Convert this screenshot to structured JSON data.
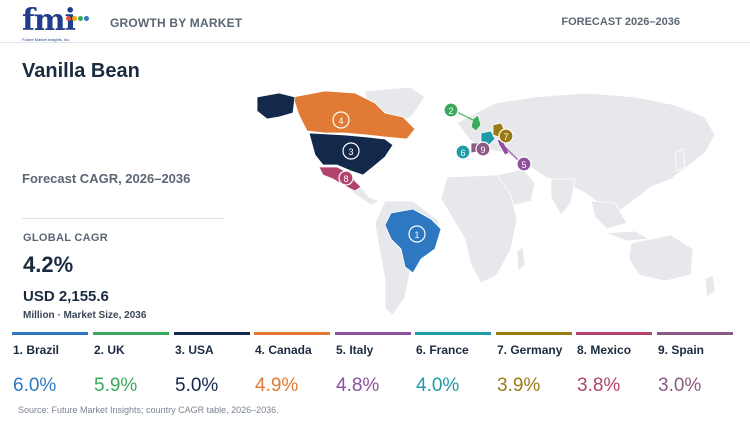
{
  "header": {
    "logo_text": "fmi",
    "logo_subtitle": "Future Market Insights, Inc.",
    "title": "GROWTH BY MARKET",
    "forecast": "FORECAST 2026–2036"
  },
  "summary": {
    "product": "Vanilla Bean",
    "cagr_label": "Forecast CAGR, 2026–2036",
    "global_cagr_label": "GLOBAL CAGR",
    "global_cagr_value": "4.2%",
    "market_size": "USD 2,155.6",
    "market_size_note": "Million · Market Size, 2036"
  },
  "countries": [
    {
      "rank": "1",
      "label": "1. Brazil",
      "value": "6.0%",
      "color": "#2e78c2"
    },
    {
      "rank": "2",
      "label": "2. UK",
      "value": "5.9%",
      "color": "#3aaa5c"
    },
    {
      "rank": "3",
      "label": "3. USA",
      "value": "5.0%",
      "color": "#13294b"
    },
    {
      "rank": "4",
      "label": "4. Canada",
      "value": "4.9%",
      "color": "#e07a34"
    },
    {
      "rank": "5",
      "label": "5. Italy",
      "value": "4.8%",
      "color": "#8e4f9e"
    },
    {
      "rank": "6",
      "label": "6. France",
      "value": "4.0%",
      "color": "#1e9aa8"
    },
    {
      "rank": "7",
      "label": "7. Germany",
      "value": "3.9%",
      "color": "#9a7a14"
    },
    {
      "rank": "8",
      "label": "8. Mexico",
      "value": "3.8%",
      "color": "#b0446f"
    },
    {
      "rank": "9",
      "label": "9. Spain",
      "value": "3.0%",
      "color": "#8d5a86"
    }
  ],
  "source": "Source: Future Market Insights; country CAGR table, 2026–2036."
}
